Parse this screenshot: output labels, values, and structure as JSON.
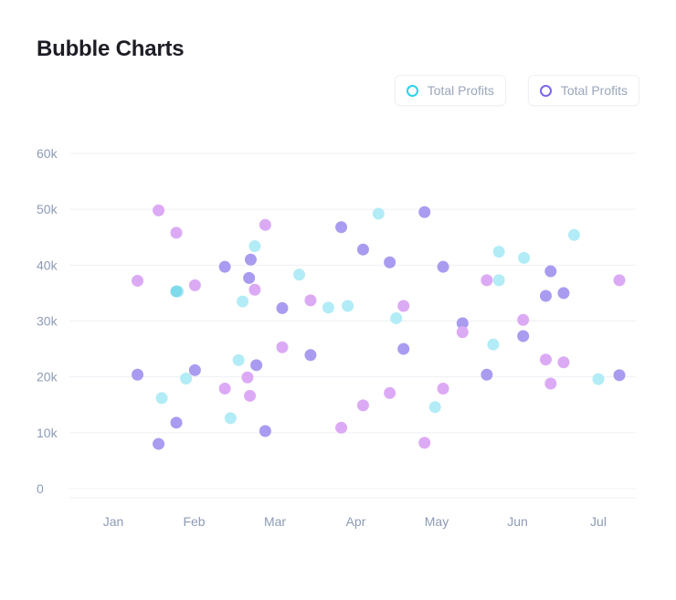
{
  "title": "Bubble Charts",
  "legend": [
    {
      "label": "Total Profits",
      "color": "#2fd2e6"
    },
    {
      "label": "Total Profits",
      "color": "#7d67e6"
    }
  ],
  "chart_data": {
    "type": "scatter",
    "title": "Bubble Charts",
    "xlabel": "",
    "ylabel": "",
    "x_categories": [
      "Jan",
      "Feb",
      "Mar",
      "Apr",
      "May",
      "Jun",
      "Jul"
    ],
    "ylim": [
      0,
      60000
    ],
    "y_ticks": [
      {
        "value": 0,
        "label": "0"
      },
      {
        "value": 10000,
        "label": "10k"
      },
      {
        "value": 20000,
        "label": "20k"
      },
      {
        "value": 30000,
        "label": "30k"
      },
      {
        "value": 40000,
        "label": "40k"
      },
      {
        "value": 50000,
        "label": "50k"
      },
      {
        "value": 60000,
        "label": "60k"
      }
    ],
    "grid": "horizontal",
    "legend_position": "top-right",
    "series": [
      {
        "color": "#b2ecf6",
        "points": [
          {
            "x": 0.6,
            "y": 16200
          },
          {
            "x": 0.8,
            "y": 35300
          },
          {
            "x": 0.9,
            "y": 19700
          },
          {
            "x": 1.45,
            "y": 12600
          },
          {
            "x": 1.55,
            "y": 23000
          },
          {
            "x": 1.6,
            "y": 33500
          },
          {
            "x": 1.75,
            "y": 43400
          },
          {
            "x": 2.3,
            "y": 38300
          },
          {
            "x": 2.66,
            "y": 32400
          },
          {
            "x": 2.9,
            "y": 32700
          },
          {
            "x": 3.28,
            "y": 49200
          },
          {
            "x": 3.5,
            "y": 30500
          },
          {
            "x": 3.98,
            "y": 14600
          },
          {
            "x": 4.7,
            "y": 25800
          },
          {
            "x": 4.77,
            "y": 42400
          },
          {
            "x": 4.77,
            "y": 37300
          },
          {
            "x": 5.08,
            "y": 41300
          },
          {
            "x": 5.7,
            "y": 45400
          },
          {
            "x": 6.0,
            "y": 19600
          }
        ]
      },
      {
        "color": "#7fdaea",
        "points": [
          {
            "x": 0.78,
            "y": 35300
          }
        ]
      },
      {
        "color": "#a99bf0",
        "points": [
          {
            "x": 0.3,
            "y": 20400
          },
          {
            "x": 0.56,
            "y": 8000
          },
          {
            "x": 0.78,
            "y": 11800
          },
          {
            "x": 1.01,
            "y": 21200
          },
          {
            "x": 1.38,
            "y": 39700
          },
          {
            "x": 1.68,
            "y": 37700
          },
          {
            "x": 1.7,
            "y": 41000
          },
          {
            "x": 1.77,
            "y": 22100
          },
          {
            "x": 1.88,
            "y": 10300
          },
          {
            "x": 2.09,
            "y": 32300
          },
          {
            "x": 2.44,
            "y": 23900
          },
          {
            "x": 2.82,
            "y": 46800
          },
          {
            "x": 3.09,
            "y": 42800
          },
          {
            "x": 3.42,
            "y": 40500
          },
          {
            "x": 3.59,
            "y": 25000
          },
          {
            "x": 3.85,
            "y": 49500
          },
          {
            "x": 4.08,
            "y": 39700
          },
          {
            "x": 4.32,
            "y": 29600
          },
          {
            "x": 4.62,
            "y": 20400
          },
          {
            "x": 5.07,
            "y": 27300
          },
          {
            "x": 5.35,
            "y": 34500
          },
          {
            "x": 5.41,
            "y": 38900
          },
          {
            "x": 5.57,
            "y": 35000
          },
          {
            "x": 6.26,
            "y": 20300
          }
        ]
      },
      {
        "color": "#dcaaf5",
        "points": [
          {
            "x": 0.3,
            "y": 37200
          },
          {
            "x": 0.56,
            "y": 49800
          },
          {
            "x": 0.78,
            "y": 45800
          },
          {
            "x": 1.01,
            "y": 36400
          },
          {
            "x": 1.38,
            "y": 17900
          },
          {
            "x": 1.66,
            "y": 19900
          },
          {
            "x": 1.69,
            "y": 16600
          },
          {
            "x": 1.75,
            "y": 35600
          },
          {
            "x": 1.88,
            "y": 47200
          },
          {
            "x": 2.09,
            "y": 25300
          },
          {
            "x": 2.44,
            "y": 33700
          },
          {
            "x": 2.82,
            "y": 10900
          },
          {
            "x": 3.09,
            "y": 14900
          },
          {
            "x": 3.42,
            "y": 17100
          },
          {
            "x": 3.59,
            "y": 32700
          },
          {
            "x": 3.85,
            "y": 8200
          },
          {
            "x": 4.08,
            "y": 17900
          },
          {
            "x": 4.32,
            "y": 28000
          },
          {
            "x": 4.62,
            "y": 37300
          },
          {
            "x": 5.07,
            "y": 30200
          },
          {
            "x": 5.35,
            "y": 23100
          },
          {
            "x": 5.41,
            "y": 18800
          },
          {
            "x": 5.57,
            "y": 22600
          },
          {
            "x": 6.26,
            "y": 37300
          }
        ]
      }
    ]
  }
}
